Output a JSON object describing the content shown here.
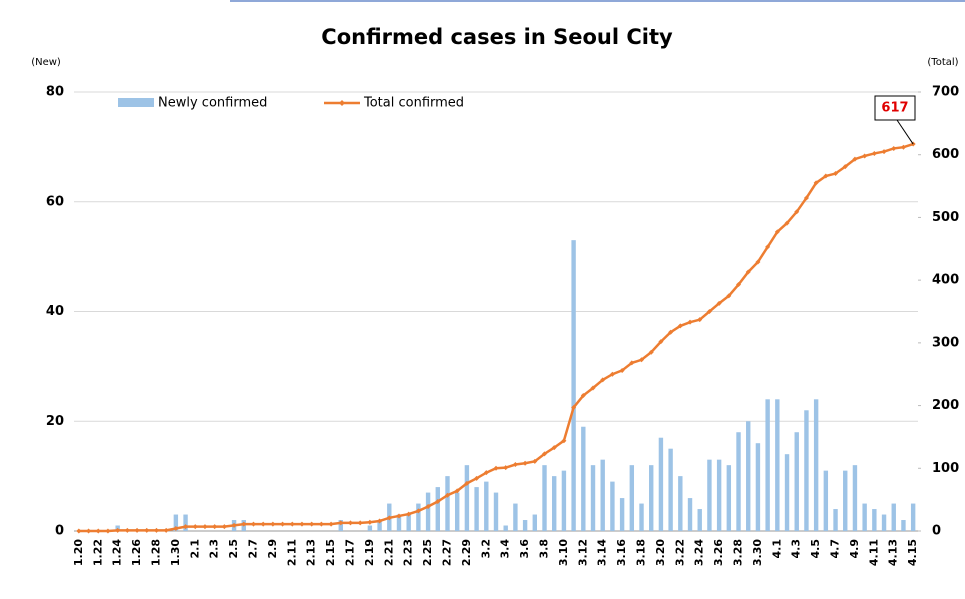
{
  "chart_data": {
    "type": "bar-line",
    "title": "Confirmed cases in Seoul City",
    "y_label": "(New)",
    "y2_label": "(Total)",
    "categories": [
      "1.20",
      null,
      "1.22",
      null,
      "1.24",
      null,
      "1.26",
      null,
      "1.28",
      null,
      "1.30",
      null,
      "2.1",
      null,
      "2.3",
      null,
      "2.5",
      null,
      "2.7",
      null,
      "2.9",
      null,
      "2.11",
      null,
      "2.13",
      null,
      "2.15",
      null,
      "2.17",
      null,
      "2.19",
      null,
      "2.21",
      null,
      "2.23",
      null,
      "2.25",
      null,
      "2.27",
      null,
      "2.29",
      null,
      "3.2",
      null,
      "3.4",
      null,
      "3.6",
      null,
      "3.8",
      null,
      "3.10",
      null,
      "3.12",
      null,
      "3.14",
      null,
      "3.16",
      null,
      "3.18",
      null,
      "3.20",
      null,
      "3.22",
      null,
      "3.24",
      null,
      "3.26",
      null,
      "3.28",
      null,
      "3.30",
      null,
      "4.1",
      null,
      "4.3",
      null,
      "4.5",
      null,
      "4.7",
      null,
      "4.9",
      null,
      "4.11",
      null,
      "4.13",
      null,
      "4.15"
    ],
    "series": [
      {
        "name": "Newly confirmed",
        "color": "#9dc3e6",
        "type": "bar",
        "axis": "y",
        "values": [
          0,
          0,
          0,
          0,
          1,
          0,
          0,
          0,
          0,
          0,
          3,
          3,
          0,
          0,
          0,
          0,
          2,
          2,
          0,
          0,
          0,
          0,
          0,
          0,
          0,
          0,
          0,
          2,
          0,
          0,
          1,
          2,
          5,
          3,
          3,
          5,
          7,
          8,
          10,
          7,
          12,
          8,
          9,
          7,
          1,
          5,
          2,
          3,
          12,
          10,
          11,
          53,
          19,
          12,
          13,
          9,
          6,
          12,
          5,
          12,
          17,
          15,
          10,
          6,
          4,
          13,
          13,
          12,
          18,
          20,
          16,
          24,
          24,
          14,
          18,
          22,
          24,
          11,
          4,
          11,
          12,
          5,
          4,
          3,
          5,
          2,
          5
        ]
      },
      {
        "name": "Total confirmed",
        "color": "#ed7d31",
        "type": "line",
        "axis": "y2",
        "values": [
          0,
          0,
          0,
          0,
          1,
          1,
          1,
          1,
          1,
          1,
          4,
          7,
          7,
          7,
          7,
          7,
          9,
          11,
          11,
          11,
          11,
          11,
          11,
          11,
          11,
          11,
          11,
          13,
          13,
          13,
          14,
          16,
          21,
          24,
          27,
          32,
          39,
          47,
          57,
          64,
          76,
          84,
          93,
          100,
          101,
          106,
          108,
          111,
          123,
          133,
          144,
          197,
          216,
          228,
          241,
          250,
          256,
          268,
          273,
          285,
          302,
          317,
          327,
          333,
          337,
          350,
          363,
          375,
          393,
          413,
          429,
          453,
          477,
          491,
          509,
          531,
          555,
          566,
          570,
          581,
          593,
          598,
          602,
          605,
          610,
          612,
          617
        ]
      }
    ],
    "ylim": [
      0,
      80
    ],
    "yticks": [
      0,
      20,
      40,
      60,
      80
    ],
    "y2lim": [
      0,
      700
    ],
    "y2ticks": [
      0,
      100,
      200,
      300,
      400,
      500,
      600,
      700
    ],
    "grid": true,
    "annotations": [
      {
        "text": "617"
      }
    ]
  }
}
